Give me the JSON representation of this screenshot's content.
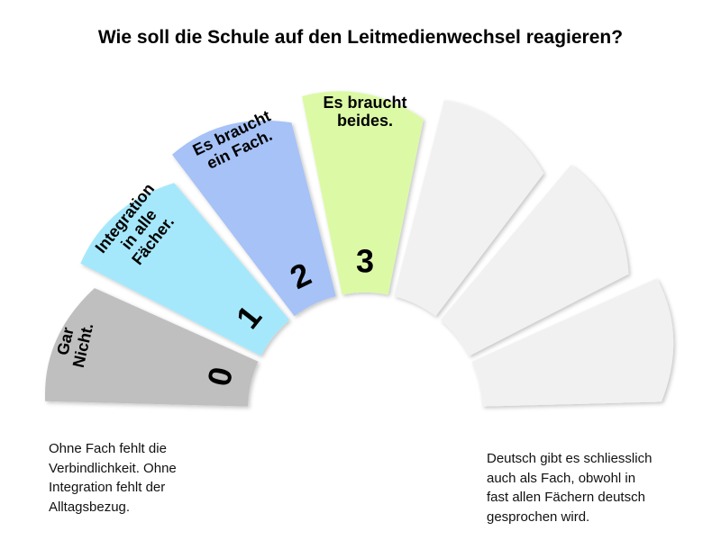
{
  "title": "Wie soll die Schule auf den Leitmedienwechsel reagieren?",
  "segments": [
    {
      "number": "0",
      "label_lines": [
        "Gar",
        "Nicht."
      ],
      "color": "#bfbfbf"
    },
    {
      "number": "1",
      "label_lines": [
        "Integration",
        "in alle",
        "Fächer."
      ],
      "color": "#a6e8fb"
    },
    {
      "number": "2",
      "label_lines": [
        "Es braucht",
        "ein Fach."
      ],
      "color": "#a6c2f7"
    },
    {
      "number": "3",
      "label_lines": [
        "Es braucht",
        "beides."
      ],
      "color": "#dcfaa6"
    },
    {
      "number": "",
      "label_lines": [],
      "color": "#f1f1f1"
    },
    {
      "number": "",
      "label_lines": [],
      "color": "#f1f1f1"
    },
    {
      "number": "",
      "label_lines": [],
      "color": "#f1f1f1"
    }
  ],
  "note_left": [
    "Ohne Fach fehlt die",
    "Verbindlichkeit. Ohne",
    "Integration fehlt der",
    "Alltagsbezug."
  ],
  "note_right": [
    "Deutsch gibt es schliesslich",
    "auch als Fach, obwohl in",
    "fast allen Fächern deutsch",
    "gesprochen wird."
  ]
}
